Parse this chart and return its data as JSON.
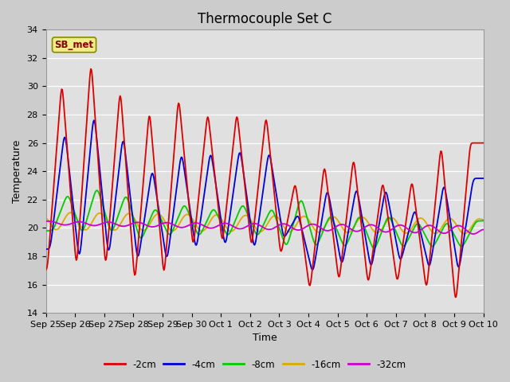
{
  "title": "Thermocouple Set C",
  "xlabel": "Time",
  "ylabel": "Temperature",
  "ylim": [
    14,
    34
  ],
  "yticks": [
    14,
    16,
    18,
    20,
    22,
    24,
    26,
    28,
    30,
    32,
    34
  ],
  "x_labels": [
    "Sep 25",
    "Sep 26",
    "Sep 27",
    "Sep 28",
    "Sep 29",
    "Sep 30",
    "Oct 1",
    "Oct 2",
    "Oct 3",
    "Oct 4",
    "Oct 5",
    "Oct 6",
    "Oct 7",
    "Oct 8",
    "Oct 9",
    "Oct 10"
  ],
  "series_labels": [
    "-2cm",
    "-4cm",
    "-8cm",
    "-16cm",
    "-32cm"
  ],
  "series_colors": [
    "#dd0000",
    "#0000dd",
    "#00cc00",
    "#ddaa00",
    "#cc00cc"
  ],
  "annotation_text": "SB_met",
  "annotation_bg": "#eeee88",
  "annotation_border": "#888800",
  "fig_bg_color": "#cccccc",
  "plot_bg_color": "#e0e0e0",
  "grid_color": "#ffffff",
  "title_fontsize": 12,
  "tick_fontsize": 8
}
